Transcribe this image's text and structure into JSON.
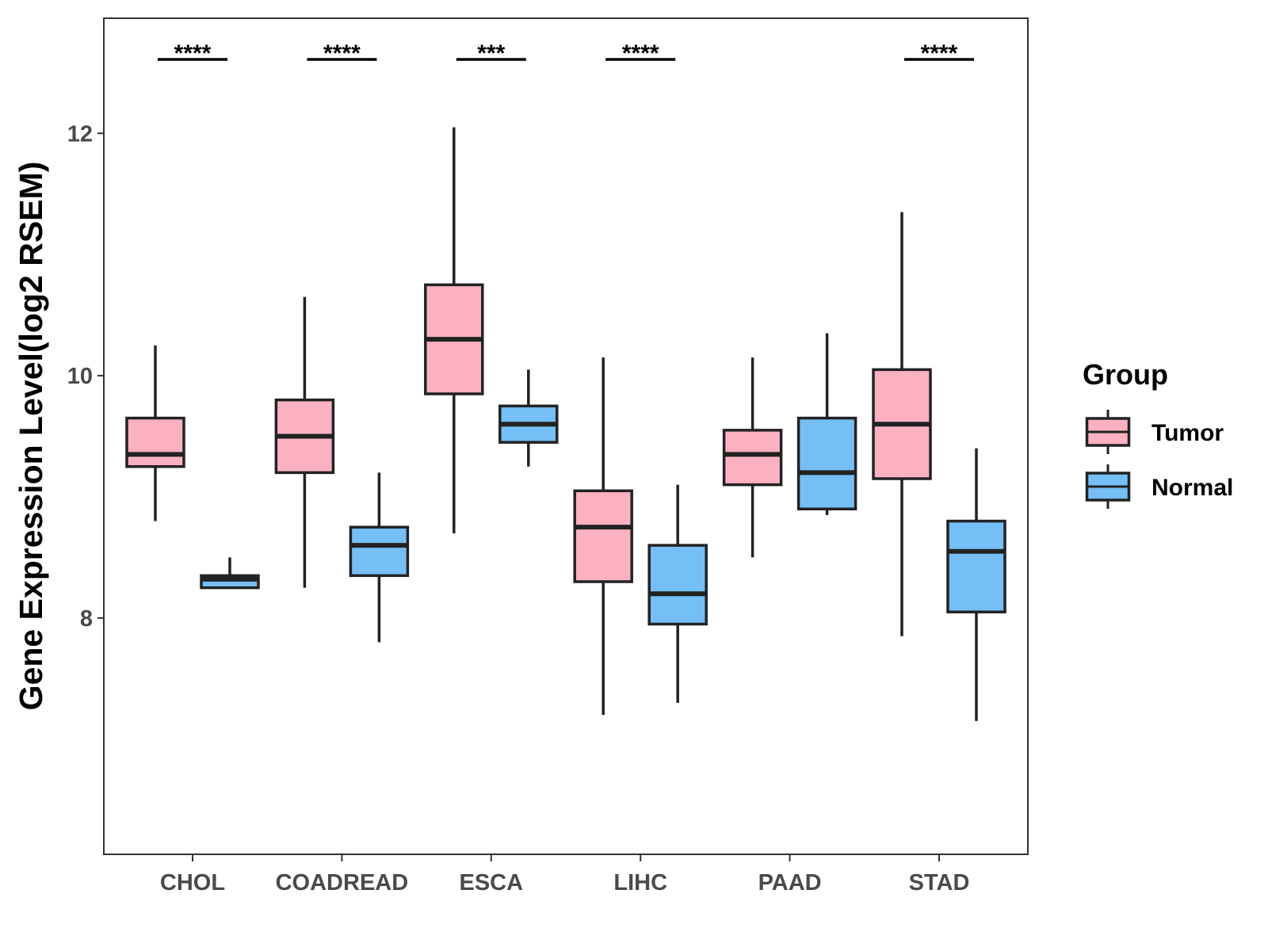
{
  "chart_data": {
    "type": "boxplot",
    "title": "",
    "xlabel": "",
    "ylabel": "Gene Expression Level(log2 RSEM)",
    "ylim": [
      6.05,
      12.95
    ],
    "yticks": [
      8,
      10,
      12
    ],
    "categories": [
      "CHOL",
      "COADREAD",
      "ESCA",
      "LIHC",
      "PAAD",
      "STAD"
    ],
    "legend": {
      "title": "Group",
      "position": "right"
    },
    "series": [
      {
        "name": "Tumor",
        "color": "#FBB1C1",
        "boxes": [
          {
            "category": "CHOL",
            "min": 8.8,
            "q1": 9.25,
            "median": 9.35,
            "q3": 9.65,
            "max": 10.25
          },
          {
            "category": "COADREAD",
            "min": 8.25,
            "q1": 9.2,
            "median": 9.5,
            "q3": 9.8,
            "max": 10.65
          },
          {
            "category": "ESCA",
            "min": 8.7,
            "q1": 9.85,
            "median": 10.3,
            "q3": 10.75,
            "max": 12.05
          },
          {
            "category": "LIHC",
            "min": 7.2,
            "q1": 8.3,
            "median": 8.75,
            "q3": 9.05,
            "max": 10.15
          },
          {
            "category": "PAAD",
            "min": 8.5,
            "q1": 9.1,
            "median": 9.35,
            "q3": 9.55,
            "max": 10.15
          },
          {
            "category": "STAD",
            "min": 7.85,
            "q1": 9.15,
            "median": 9.6,
            "q3": 10.05,
            "max": 11.35
          }
        ]
      },
      {
        "name": "Normal",
        "color": "#75BFF6",
        "boxes": [
          {
            "category": "CHOL",
            "min": 8.25,
            "q1": 8.25,
            "median": 8.32,
            "q3": 8.35,
            "max": 8.5
          },
          {
            "category": "COADREAD",
            "min": 7.8,
            "q1": 8.35,
            "median": 8.6,
            "q3": 8.75,
            "max": 9.2
          },
          {
            "category": "ESCA",
            "min": 9.25,
            "q1": 9.45,
            "median": 9.6,
            "q3": 9.75,
            "max": 10.05
          },
          {
            "category": "LIHC",
            "min": 7.3,
            "q1": 7.95,
            "median": 8.2,
            "q3": 8.6,
            "max": 9.1
          },
          {
            "category": "PAAD",
            "min": 8.85,
            "q1": 8.9,
            "median": 9.2,
            "q3": 9.65,
            "max": 10.35
          },
          {
            "category": "STAD",
            "min": 7.15,
            "q1": 8.05,
            "median": 8.55,
            "q3": 8.8,
            "max": 9.4
          }
        ]
      }
    ],
    "significance": [
      {
        "category": "CHOL",
        "label": "****"
      },
      {
        "category": "COADREAD",
        "label": "****"
      },
      {
        "category": "ESCA",
        "label": "***"
      },
      {
        "category": "LIHC",
        "label": "****"
      },
      {
        "category": "PAAD",
        "label": ""
      },
      {
        "category": "STAD",
        "label": "****"
      }
    ]
  }
}
